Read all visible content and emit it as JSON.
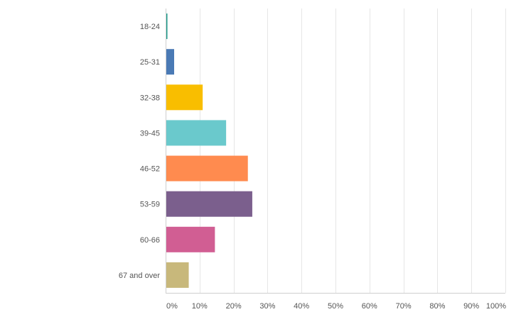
{
  "chart_data": {
    "type": "bar",
    "orientation": "horizontal",
    "categories": [
      "18-24",
      "25-31",
      "32-38",
      "39-45",
      "46-52",
      "53-59",
      "60-66",
      "67 and over"
    ],
    "values": [
      0.3,
      2.3,
      10.7,
      17.6,
      24.0,
      25.3,
      14.3,
      6.6
    ],
    "colors": [
      "#1e9b8b",
      "#4a7ab5",
      "#f9be00",
      "#6ac9cc",
      "#ff8b4f",
      "#7b5f8d",
      "#d15e93",
      "#c8b87b"
    ],
    "xlim": [
      0,
      100
    ],
    "xticks": [
      "0%",
      "10%",
      "20%",
      "30%",
      "40%",
      "50%",
      "60%",
      "70%",
      "80%",
      "90%",
      "100%"
    ],
    "grid": true,
    "legend": "none",
    "title": "",
    "xlabel": "",
    "ylabel": ""
  }
}
